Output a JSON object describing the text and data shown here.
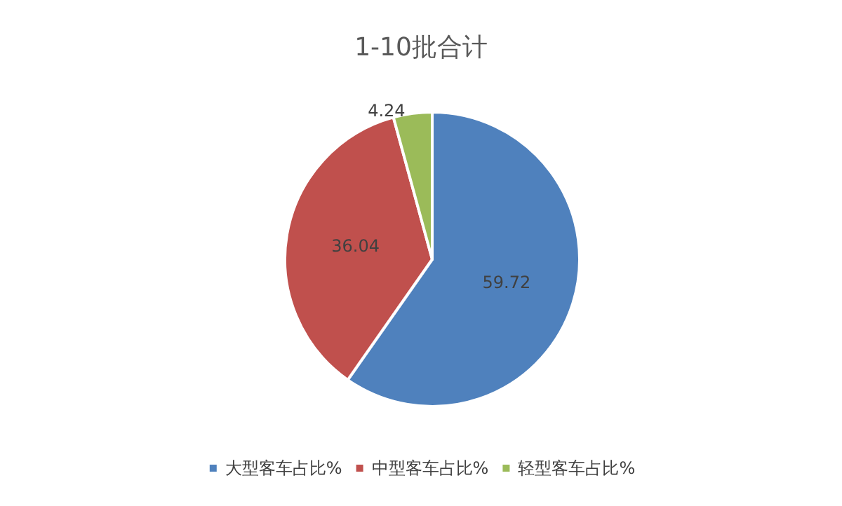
{
  "chart_data": {
    "type": "pie",
    "title": "1-10批合计",
    "categories": [
      "大型客车占比%",
      "中型客车占比%",
      "轻型客车占比%"
    ],
    "values": [
      59.72,
      36.04,
      4.24
    ],
    "colors": [
      "#4f81bd",
      "#c0504d",
      "#9bbb59"
    ],
    "data_labels": true,
    "legend": "bottom"
  }
}
